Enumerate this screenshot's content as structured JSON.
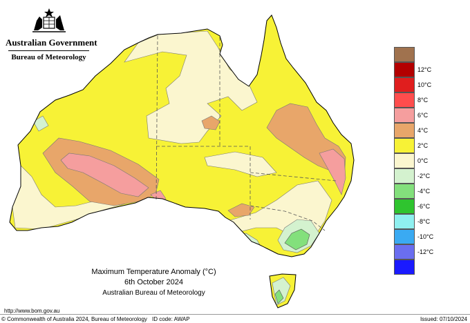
{
  "header": {
    "agency": "Australian Government",
    "bureau": "Bureau of Meteorology"
  },
  "caption": {
    "title": "Maximum Temperature Anomaly (°C)",
    "date": "6th October 2024",
    "source": "Australian Bureau of Meteorology"
  },
  "footer": {
    "url": "http://www.bom.gov.au",
    "copyright": "© Commonwealth of Australia 2024, Bureau of Meteorology",
    "id_code": "ID code: AWAP",
    "issued": "Issued: 07/10/2024"
  },
  "legend": {
    "items": [
      {
        "label": "",
        "color": "#a0724e"
      },
      {
        "label": "12°C",
        "color": "#b30000"
      },
      {
        "label": "10°C",
        "color": "#e01e1e"
      },
      {
        "label": "8°C",
        "color": "#ff4d4d"
      },
      {
        "label": "6°C",
        "color": "#f59e9e"
      },
      {
        "label": "4°C",
        "color": "#e8a66a"
      },
      {
        "label": "2°C",
        "color": "#f7f236"
      },
      {
        "label": "0°C",
        "color": "#fbf6cf"
      },
      {
        "label": "-2°C",
        "color": "#d4f2cf"
      },
      {
        "label": "-4°C",
        "color": "#83e07c"
      },
      {
        "label": "-6°C",
        "color": "#2fc42f"
      },
      {
        "label": "-8°C",
        "color": "#8ff0f0"
      },
      {
        "label": "-10°C",
        "color": "#3aaaf2"
      },
      {
        "label": "-12°C",
        "color": "#6a6ef0"
      },
      {
        "label": "",
        "color": "#1a1aff"
      }
    ]
  }
}
